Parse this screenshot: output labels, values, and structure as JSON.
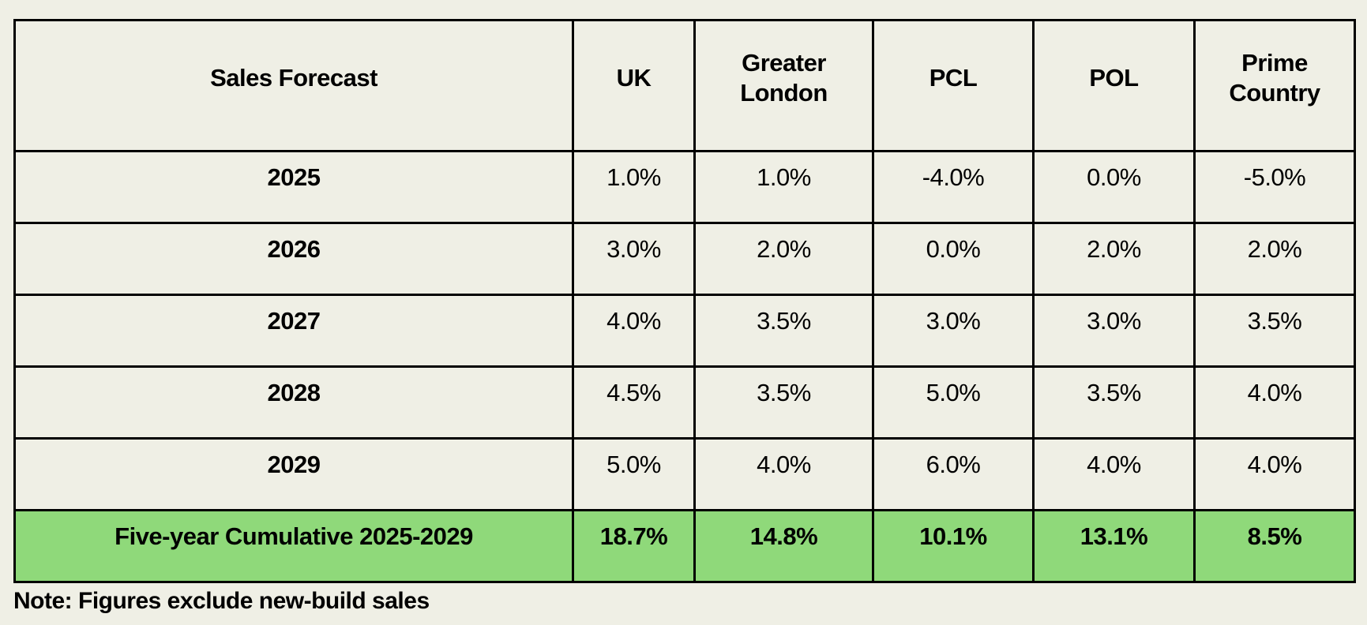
{
  "table": {
    "headers": [
      "Sales Forecast",
      "UK",
      "Greater London",
      "PCL",
      "POL",
      "Prime Country"
    ],
    "rows": [
      {
        "label": "2025",
        "values": [
          "1.0%",
          "1.0%",
          "-4.0%",
          "0.0%",
          "-5.0%"
        ]
      },
      {
        "label": "2026",
        "values": [
          "3.0%",
          "2.0%",
          "0.0%",
          "2.0%",
          "2.0%"
        ]
      },
      {
        "label": "2027",
        "values": [
          "4.0%",
          "3.5%",
          "3.0%",
          "3.0%",
          "3.5%"
        ]
      },
      {
        "label": "2028",
        "values": [
          "4.5%",
          "3.5%",
          "5.0%",
          "3.5%",
          "4.0%"
        ]
      },
      {
        "label": "2029",
        "values": [
          "5.0%",
          "4.0%",
          "6.0%",
          "4.0%",
          "4.0%"
        ]
      }
    ],
    "total": {
      "label": "Five-year Cumulative 2025-2029",
      "values": [
        "18.7%",
        "14.8%",
        "10.1%",
        "13.1%",
        "8.5%"
      ]
    }
  },
  "note": "Note: Figures exclude new-build sales",
  "colors": {
    "background": "#efefe5",
    "total_row": "#8fd97a"
  }
}
